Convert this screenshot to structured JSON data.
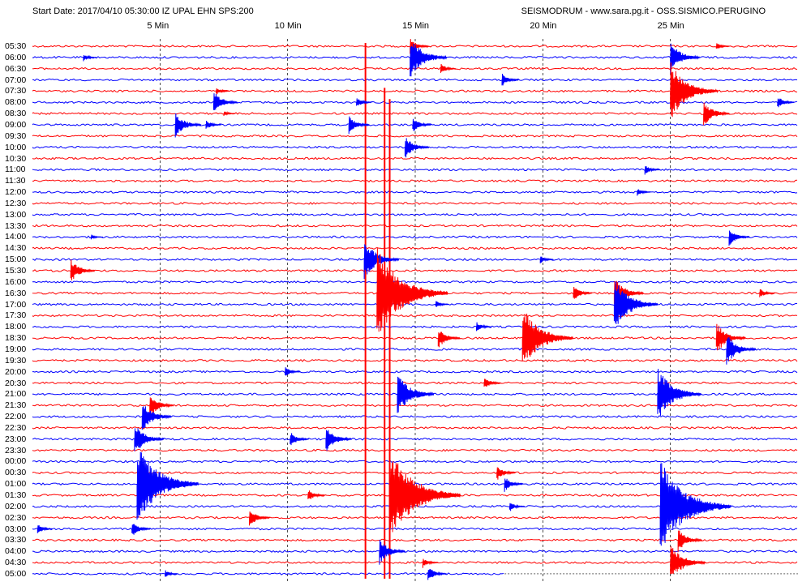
{
  "header": {
    "start_info": "Start Date: 2017/04/10 05:30:00 IZ UPAL  EHN SPS:200",
    "station_info": "SEISMODRUM - www.sara.pg.it - OSS.SISMICO.PERUGINO"
  },
  "chart_data": {
    "type": "line",
    "title": "",
    "xlabel": "",
    "ylabel": "",
    "x_ticks": [
      "5 Min",
      "10 Min",
      "15 Min",
      "20 Min",
      "25 Min"
    ],
    "x_tick_minutes": [
      5,
      10,
      15,
      20,
      25
    ],
    "x_range_minutes": [
      0,
      30
    ],
    "grid": "vertical dashed lines at each 5-minute mark",
    "row_colors": [
      "#ff0000",
      "#0000ff"
    ],
    "row_labels": [
      "05:30",
      "06:00",
      "06:30",
      "07:00",
      "07:30",
      "08:00",
      "08:30",
      "09:00",
      "09:30",
      "10:00",
      "10:30",
      "11:00",
      "11:30",
      "12:00",
      "12:30",
      "13:00",
      "13:30",
      "14:00",
      "14:30",
      "15:00",
      "15:30",
      "16:00",
      "16:30",
      "17:00",
      "17:30",
      "18:00",
      "18:30",
      "19:00",
      "19:30",
      "20:00",
      "20:30",
      "21:00",
      "21:30",
      "22:00",
      "22:30",
      "23:00",
      "23:30",
      "00:00",
      "00:30",
      "01:00",
      "01:30",
      "02:00",
      "02:30",
      "03:00",
      "03:30",
      "04:00",
      "04:30",
      "05:00"
    ],
    "events": [
      {
        "row": 0,
        "minute": 14.8,
        "amp": 0.6
      },
      {
        "row": 0,
        "minute": 26.8,
        "amp": 0.3
      },
      {
        "row": 1,
        "minute": 2.0,
        "amp": 0.3
      },
      {
        "row": 1,
        "minute": 14.8,
        "amp": 1.6
      },
      {
        "row": 1,
        "minute": 25.0,
        "amp": 1.2
      },
      {
        "row": 2,
        "minute": 16.0,
        "amp": 0.4
      },
      {
        "row": 3,
        "minute": 18.4,
        "amp": 0.5
      },
      {
        "row": 4,
        "minute": 7.2,
        "amp": 0.3
      },
      {
        "row": 4,
        "minute": 25.0,
        "amp": 2.2
      },
      {
        "row": 5,
        "minute": 7.1,
        "amp": 0.9
      },
      {
        "row": 5,
        "minute": 12.7,
        "amp": 0.4
      },
      {
        "row": 5,
        "minute": 29.2,
        "amp": 0.5
      },
      {
        "row": 6,
        "minute": 26.3,
        "amp": 1.0
      },
      {
        "row": 6,
        "minute": 7.5,
        "amp": 0.2
      },
      {
        "row": 7,
        "minute": 5.6,
        "amp": 1.0
      },
      {
        "row": 7,
        "minute": 6.8,
        "amp": 0.4
      },
      {
        "row": 7,
        "minute": 12.4,
        "amp": 0.7
      },
      {
        "row": 7,
        "minute": 14.9,
        "amp": 0.6
      },
      {
        "row": 9,
        "minute": 14.6,
        "amp": 0.9
      },
      {
        "row": 11,
        "minute": 24.0,
        "amp": 0.4
      },
      {
        "row": 13,
        "minute": 23.7,
        "amp": 0.3
      },
      {
        "row": 17,
        "minute": 27.3,
        "amp": 0.7
      },
      {
        "row": 17,
        "minute": 2.3,
        "amp": 0.2
      },
      {
        "row": 19,
        "minute": 13.0,
        "amp": 1.5
      },
      {
        "row": 19,
        "minute": 19.9,
        "amp": 0.3
      },
      {
        "row": 20,
        "minute": 1.5,
        "amp": 0.9
      },
      {
        "row": 22,
        "minute": 13.5,
        "amp": 3.5
      },
      {
        "row": 22,
        "minute": 22.8,
        "amp": 1.2
      },
      {
        "row": 22,
        "minute": 21.2,
        "amp": 0.6
      },
      {
        "row": 22,
        "minute": 28.5,
        "amp": 0.4
      },
      {
        "row": 23,
        "minute": 22.8,
        "amp": 2.0
      },
      {
        "row": 23,
        "minute": 15.8,
        "amp": 0.3
      },
      {
        "row": 25,
        "minute": 17.4,
        "amp": 0.4
      },
      {
        "row": 26,
        "minute": 15.9,
        "amp": 0.8
      },
      {
        "row": 26,
        "minute": 19.2,
        "amp": 2.4
      },
      {
        "row": 26,
        "minute": 26.8,
        "amp": 1.2
      },
      {
        "row": 27,
        "minute": 27.2,
        "amp": 1.2
      },
      {
        "row": 29,
        "minute": 9.9,
        "amp": 0.4
      },
      {
        "row": 30,
        "minute": 17.7,
        "amp": 0.5
      },
      {
        "row": 31,
        "minute": 14.3,
        "amp": 1.6
      },
      {
        "row": 31,
        "minute": 24.5,
        "amp": 2.0
      },
      {
        "row": 32,
        "minute": 4.6,
        "amp": 0.9
      },
      {
        "row": 33,
        "minute": 4.3,
        "amp": 1.2
      },
      {
        "row": 35,
        "minute": 10.1,
        "amp": 0.6
      },
      {
        "row": 35,
        "minute": 11.5,
        "amp": 1.0
      },
      {
        "row": 35,
        "minute": 4.0,
        "amp": 1.2
      },
      {
        "row": 38,
        "minute": 18.2,
        "amp": 0.6
      },
      {
        "row": 39,
        "minute": 4.1,
        "amp": 3.0
      },
      {
        "row": 39,
        "minute": 18.5,
        "amp": 0.6
      },
      {
        "row": 40,
        "minute": 10.8,
        "amp": 0.5
      },
      {
        "row": 40,
        "minute": 14.0,
        "amp": 3.5
      },
      {
        "row": 41,
        "minute": 24.6,
        "amp": 3.5
      },
      {
        "row": 41,
        "minute": 18.7,
        "amp": 0.4
      },
      {
        "row": 42,
        "minute": 8.5,
        "amp": 0.7
      },
      {
        "row": 43,
        "minute": 3.9,
        "amp": 0.6
      },
      {
        "row": 43,
        "minute": 0.2,
        "amp": 0.4
      },
      {
        "row": 44,
        "minute": 25.3,
        "amp": 0.9
      },
      {
        "row": 45,
        "minute": 13.6,
        "amp": 1.0
      },
      {
        "row": 46,
        "minute": 25.0,
        "amp": 1.5
      },
      {
        "row": 46,
        "minute": 15.3,
        "amp": 0.4
      },
      {
        "row": 47,
        "minute": 5.2,
        "amp": 0.3
      },
      {
        "row": 47,
        "minute": 15.5,
        "amp": 0.6
      }
    ],
    "vertical_streaks": [
      {
        "minute": 13.05,
        "from_row": 0,
        "to_row": 47,
        "color": "#ff0000"
      },
      {
        "minute": 13.8,
        "from_row": 4,
        "to_row": 47,
        "color": "#ff0000"
      },
      {
        "minute": 14.0,
        "from_row": 5,
        "to_row": 47,
        "color": "#ff0000"
      }
    ],
    "partial_last_row_end_minute": 18.5
  }
}
